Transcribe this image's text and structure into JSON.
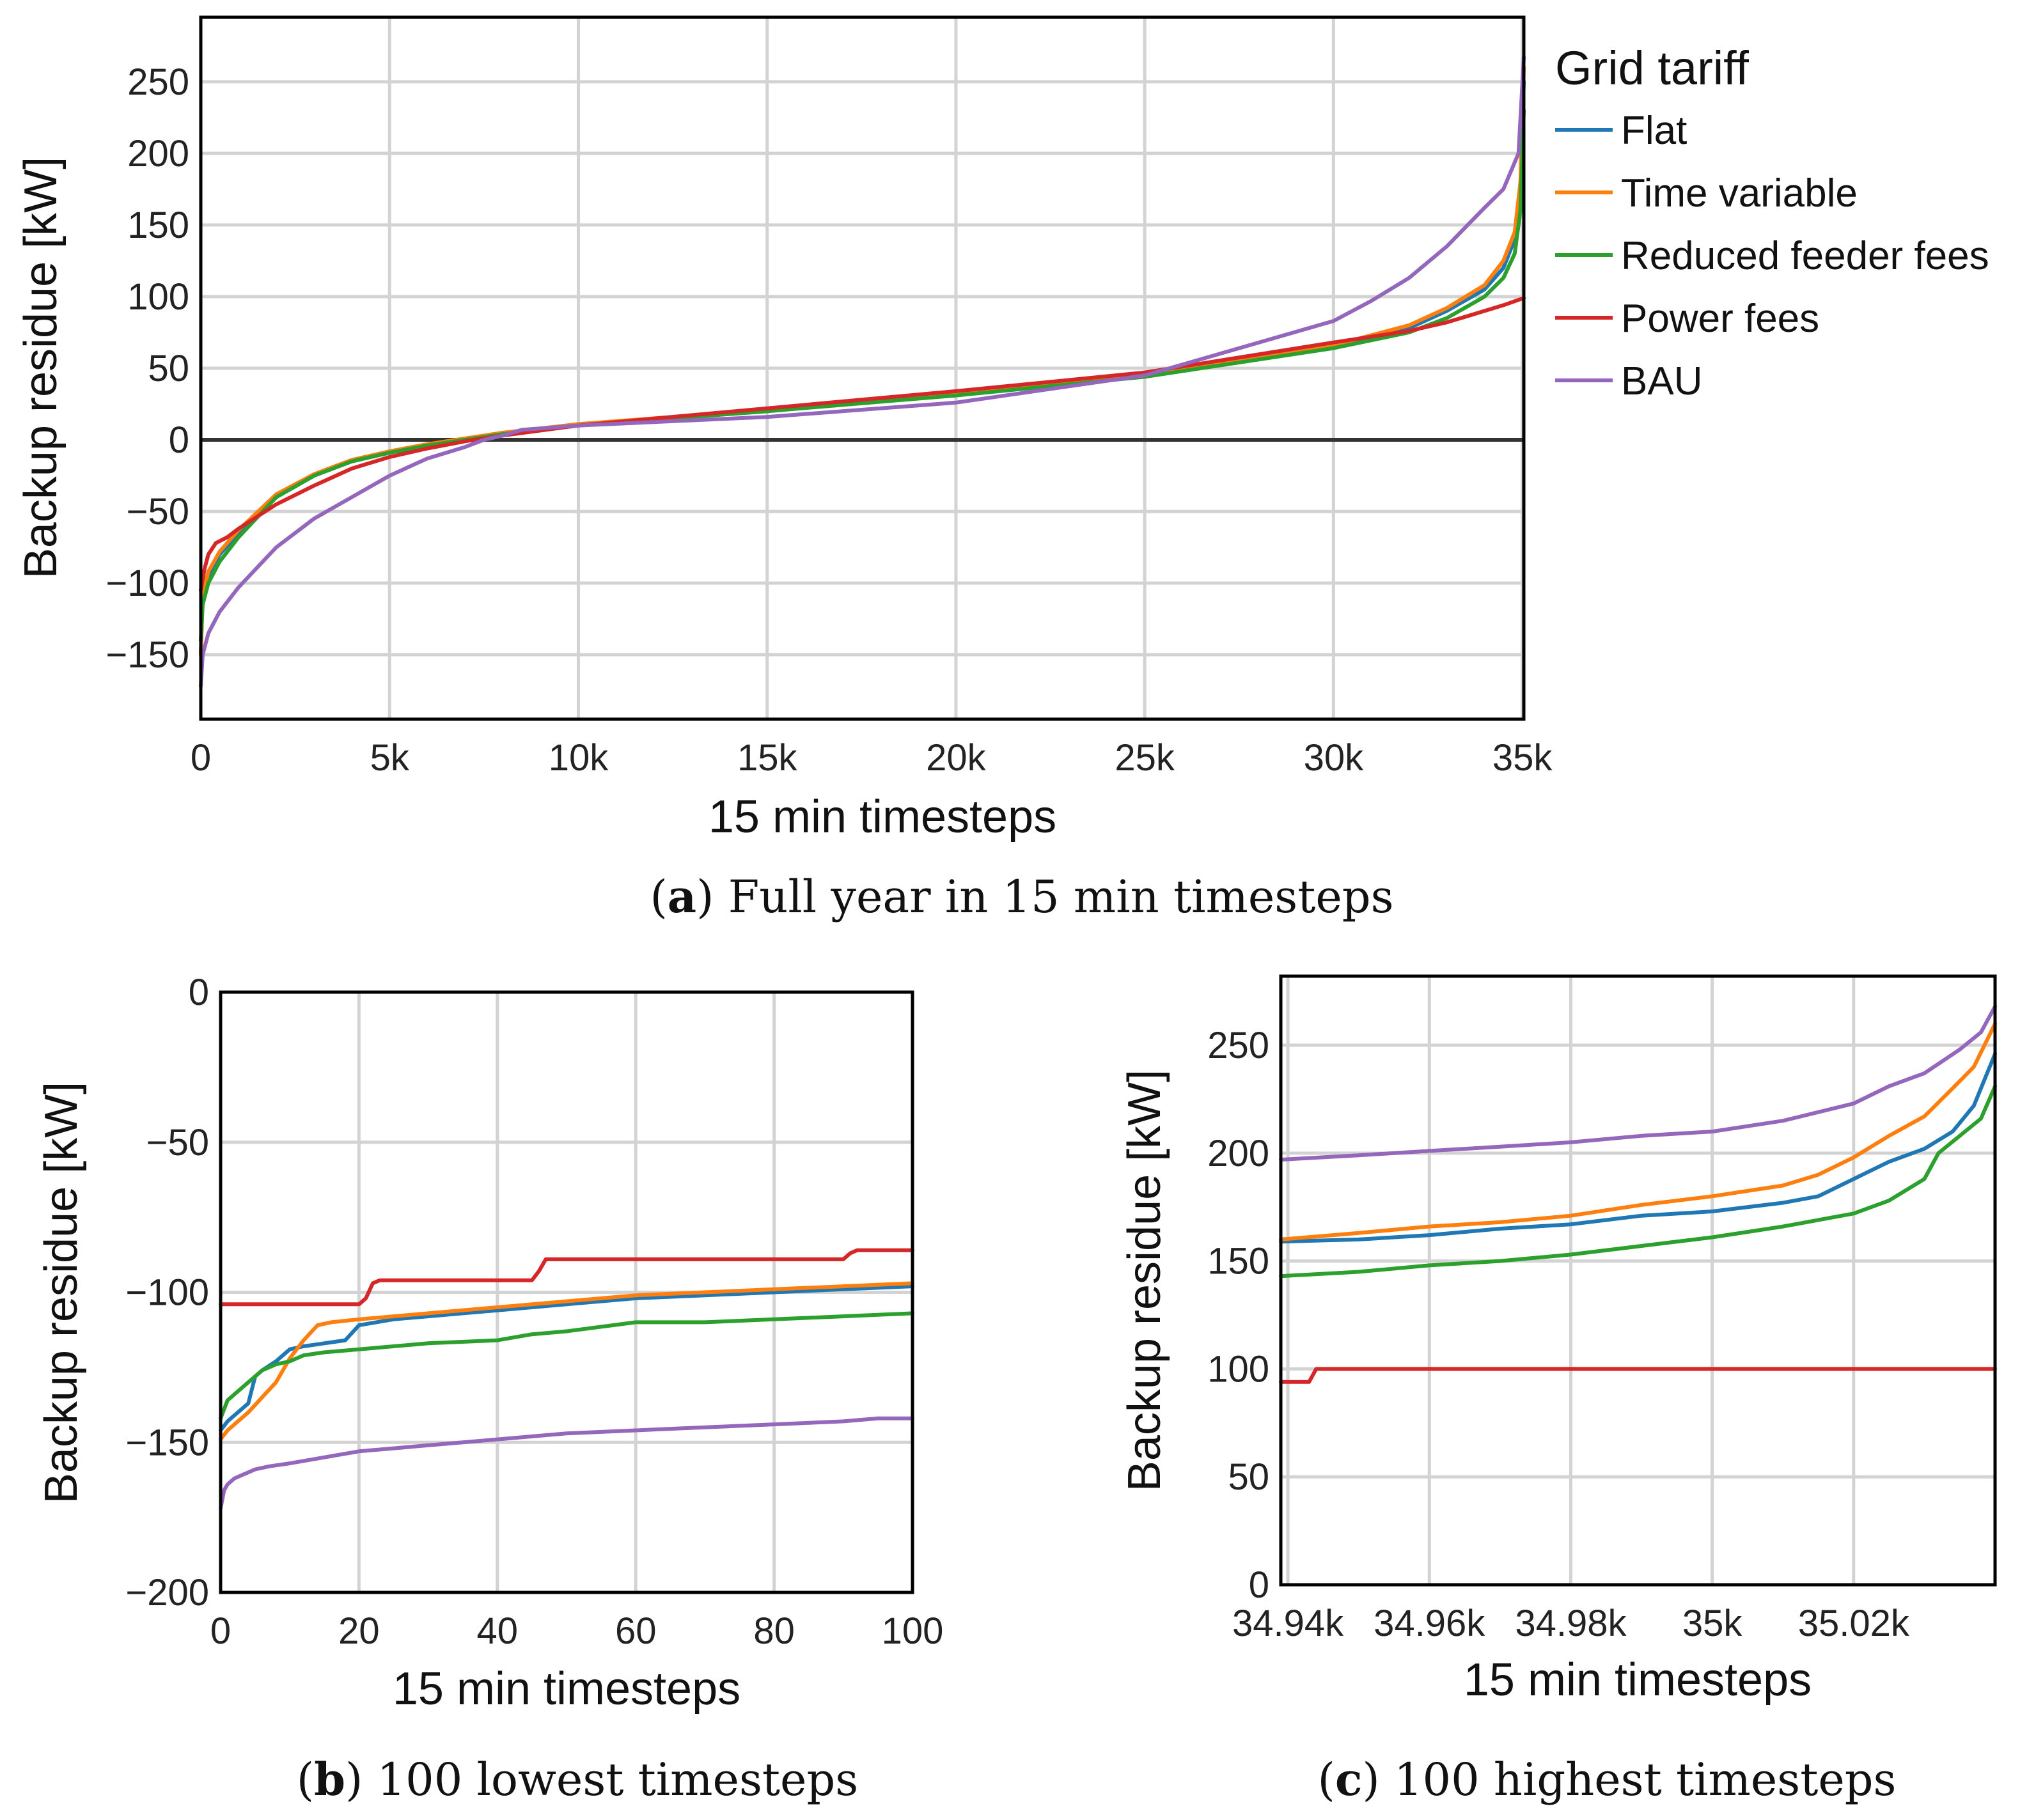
{
  "legend": {
    "title": "Grid tariff",
    "entries": [
      {
        "name": "Flat",
        "color": "#1f77b4"
      },
      {
        "name": "Time variable",
        "color": "#ff7f0e"
      },
      {
        "name": "Reduced feeder fees",
        "color": "#2ca02c"
      },
      {
        "name": "Power fees",
        "color": "#d62728"
      },
      {
        "name": "BAU",
        "color": "#9467bd"
      }
    ]
  },
  "chart_data": [
    {
      "id": "a",
      "type": "line",
      "caption_label": "a",
      "caption_text": ") Full year in 15 min timesteps",
      "caption_paren": "(",
      "xlabel": "15 min timesteps",
      "ylabel": "Backup residue [kW]",
      "xlim": [
        0,
        35040
      ],
      "ylim": [
        -195,
        295
      ],
      "xticks": [
        0,
        5000,
        10000,
        15000,
        20000,
        25000,
        30000,
        35000
      ],
      "xtick_labels": [
        "0",
        "5k",
        "10k",
        "15k",
        "20k",
        "25k",
        "30k",
        "35k"
      ],
      "yticks": [
        -150,
        -100,
        -50,
        0,
        50,
        100,
        150,
        200,
        250
      ],
      "ytick_labels": [
        "−150",
        "−100",
        "−50",
        "0",
        "50",
        "100",
        "150",
        "200",
        "250"
      ],
      "zero_line": true,
      "series": [
        {
          "name": "Flat",
          "x": [
            0,
            50,
            200,
            500,
            1000,
            2000,
            3000,
            4000,
            5000,
            6000,
            7000,
            8000,
            10000,
            15000,
            20000,
            25000,
            30000,
            32000,
            33000,
            34000,
            34500,
            34800,
            34950,
            35040
          ],
          "y": [
            -150,
            -110,
            -95,
            -80,
            -65,
            -40,
            -25,
            -15,
            -9,
            -4,
            0,
            4,
            10,
            20,
            32,
            45,
            65,
            78,
            90,
            105,
            120,
            140,
            175,
            250
          ]
        },
        {
          "name": "Time variable",
          "x": [
            0,
            50,
            200,
            500,
            1000,
            2000,
            3000,
            4000,
            5000,
            6000,
            7000,
            8000,
            10000,
            15000,
            20000,
            25000,
            30000,
            32000,
            33000,
            34000,
            34500,
            34800,
            34950,
            35040
          ],
          "y": [
            -150,
            -108,
            -92,
            -78,
            -63,
            -38,
            -24,
            -14,
            -8,
            -3,
            1,
            5,
            11,
            21,
            33,
            46,
            66,
            80,
            92,
            108,
            125,
            145,
            180,
            260
          ]
        },
        {
          "name": "Reduced feeder fees",
          "x": [
            0,
            50,
            200,
            500,
            1000,
            2000,
            3000,
            4000,
            5000,
            6000,
            7000,
            8000,
            10000,
            15000,
            20000,
            25000,
            30000,
            32000,
            33000,
            34000,
            34500,
            34800,
            34950,
            35040
          ],
          "y": [
            -140,
            -115,
            -100,
            -85,
            -68,
            -40,
            -25,
            -15,
            -9,
            -4,
            0,
            4,
            10,
            20,
            31,
            44,
            64,
            75,
            85,
            100,
            113,
            130,
            160,
            230
          ]
        },
        {
          "name": "Power fees",
          "x": [
            0,
            100,
            200,
            400,
            700,
            1000,
            2000,
            3000,
            4000,
            5000,
            6000,
            7000,
            8000,
            10000,
            15000,
            20000,
            25000,
            30000,
            31000,
            32000,
            33000,
            34000,
            34500,
            35040
          ],
          "y": [
            -105,
            -90,
            -80,
            -72,
            -68,
            -62,
            -45,
            -32,
            -20,
            -12,
            -6,
            -1,
            3,
            10,
            22,
            34,
            47,
            68,
            72,
            76,
            82,
            90,
            94,
            99
          ]
        },
        {
          "name": "BAU",
          "x": [
            0,
            50,
            200,
            500,
            1000,
            2000,
            3000,
            4000,
            5000,
            6000,
            7000,
            7500,
            8000,
            8500,
            10000,
            15000,
            20000,
            25000,
            30000,
            31000,
            32000,
            33000,
            34000,
            34500,
            34900,
            35040
          ],
          "y": [
            -172,
            -150,
            -135,
            -120,
            -103,
            -75,
            -55,
            -40,
            -25,
            -13,
            -5,
            0,
            3,
            7,
            10,
            16,
            26,
            45,
            83,
            97,
            113,
            135,
            162,
            175,
            200,
            267
          ]
        }
      ]
    },
    {
      "id": "b",
      "type": "line",
      "caption_label": "b",
      "caption_text": ") 100 lowest timesteps",
      "caption_paren": "(",
      "xlabel": "15 min timesteps",
      "ylabel": "Backup residue [kW]",
      "xlim": [
        0,
        100
      ],
      "ylim": [
        -200,
        0
      ],
      "xticks": [
        0,
        20,
        40,
        60,
        80,
        100
      ],
      "xtick_labels": [
        "0",
        "20",
        "40",
        "60",
        "80",
        "100"
      ],
      "yticks": [
        -200,
        -150,
        -100,
        -50,
        0
      ],
      "ytick_labels": [
        "−200",
        "−150",
        "−100",
        "−50",
        "0"
      ],
      "series": [
        {
          "name": "Flat",
          "x": [
            0,
            1,
            2,
            3,
            4,
            5,
            6,
            8,
            10,
            12,
            15,
            18,
            20,
            25,
            30,
            40,
            50,
            60,
            70,
            80,
            90,
            100
          ],
          "y": [
            -146,
            -143,
            -141,
            -139,
            -137,
            -128,
            -126,
            -123,
            -119,
            -118,
            -117,
            -116,
            -111,
            -109,
            -108,
            -106,
            -104,
            -102,
            -101,
            -100,
            -99,
            -98
          ]
        },
        {
          "name": "Time variable",
          "x": [
            0,
            1,
            2,
            3,
            4,
            6,
            8,
            10,
            12,
            14,
            16,
            20,
            25,
            30,
            40,
            50,
            60,
            70,
            80,
            90,
            100
          ],
          "y": [
            -149,
            -146,
            -144,
            -142,
            -140,
            -135,
            -130,
            -122,
            -116,
            -111,
            -110,
            -109,
            -108,
            -107,
            -105,
            -103,
            -101,
            -100,
            -99,
            -98,
            -97
          ]
        },
        {
          "name": "Reduced feeder fees",
          "x": [
            0,
            1,
            2,
            3,
            4,
            6,
            8,
            10,
            12,
            15,
            20,
            25,
            30,
            40,
            45,
            50,
            60,
            70,
            80,
            90,
            100
          ],
          "y": [
            -142,
            -136,
            -134,
            -132,
            -130,
            -126,
            -124,
            -123,
            -121,
            -120,
            -119,
            -118,
            -117,
            -116,
            -114,
            -113,
            -110,
            -110,
            -109,
            -108,
            -107
          ]
        },
        {
          "name": "Power fees",
          "x": [
            0,
            20,
            21,
            22,
            23,
            45,
            46,
            47,
            70,
            90,
            91,
            92,
            100
          ],
          "y": [
            -104,
            -104,
            -102,
            -97,
            -96,
            -96,
            -93,
            -89,
            -89,
            -89,
            -87,
            -86,
            -86
          ]
        },
        {
          "name": "BAU",
          "x": [
            0,
            0.5,
            1,
            2,
            3,
            5,
            7,
            10,
            15,
            20,
            25,
            30,
            40,
            50,
            60,
            70,
            80,
            90,
            95,
            100
          ],
          "y": [
            -172,
            -166,
            -164,
            -162,
            -161,
            -159,
            -158,
            -157,
            -155,
            -153,
            -152,
            -151,
            -149,
            -147,
            -146,
            -145,
            -144,
            -143,
            -142,
            -142
          ]
        }
      ]
    },
    {
      "id": "c",
      "type": "line",
      "caption_label": "c",
      "caption_text": ") 100 highest timesteps",
      "caption_paren": "(",
      "xlabel": "15 min timesteps",
      "ylabel": "Backup residue [kW]",
      "xlim": [
        34939,
        35040
      ],
      "ylim": [
        0,
        282
      ],
      "xticks": [
        34940,
        34960,
        34980,
        35000,
        35020
      ],
      "xtick_labels": [
        "34.94k",
        "34.96k",
        "34.98k",
        "35k",
        "35.02k"
      ],
      "yticks": [
        0,
        50,
        100,
        150,
        200,
        250
      ],
      "ytick_labels": [
        "0",
        "50",
        "100",
        "150",
        "200",
        "250"
      ],
      "series": [
        {
          "name": "Flat",
          "x": [
            34939,
            34950,
            34960,
            34970,
            34980,
            34990,
            35000,
            35010,
            35015,
            35020,
            35025,
            35030,
            35034,
            35037,
            35040
          ],
          "y": [
            159,
            160,
            162,
            165,
            167,
            171,
            173,
            177,
            180,
            188,
            196,
            202,
            210,
            222,
            246
          ]
        },
        {
          "name": "Time variable",
          "x": [
            34939,
            34950,
            34960,
            34970,
            34980,
            34990,
            35000,
            35010,
            35015,
            35020,
            35025,
            35030,
            35034,
            35037,
            35040
          ],
          "y": [
            160,
            163,
            166,
            168,
            171,
            176,
            180,
            185,
            190,
            198,
            208,
            217,
            230,
            240,
            260
          ]
        },
        {
          "name": "Reduced feeder fees",
          "x": [
            34939,
            34950,
            34960,
            34970,
            34980,
            34990,
            35000,
            35010,
            35020,
            35025,
            35030,
            35032,
            35035,
            35038,
            35040
          ],
          "y": [
            143,
            145,
            148,
            150,
            153,
            157,
            161,
            166,
            172,
            178,
            188,
            200,
            208,
            216,
            231
          ]
        },
        {
          "name": "Power fees",
          "x": [
            34939,
            34943,
            34944,
            35040
          ],
          "y": [
            94,
            94,
            100,
            100
          ]
        },
        {
          "name": "BAU",
          "x": [
            34939,
            34950,
            34960,
            34970,
            34980,
            34990,
            35000,
            35010,
            35020,
            35025,
            35030,
            35035,
            35038,
            35040
          ],
          "y": [
            197,
            199,
            201,
            203,
            205,
            208,
            210,
            215,
            223,
            231,
            237,
            248,
            256,
            268
          ]
        }
      ]
    }
  ]
}
